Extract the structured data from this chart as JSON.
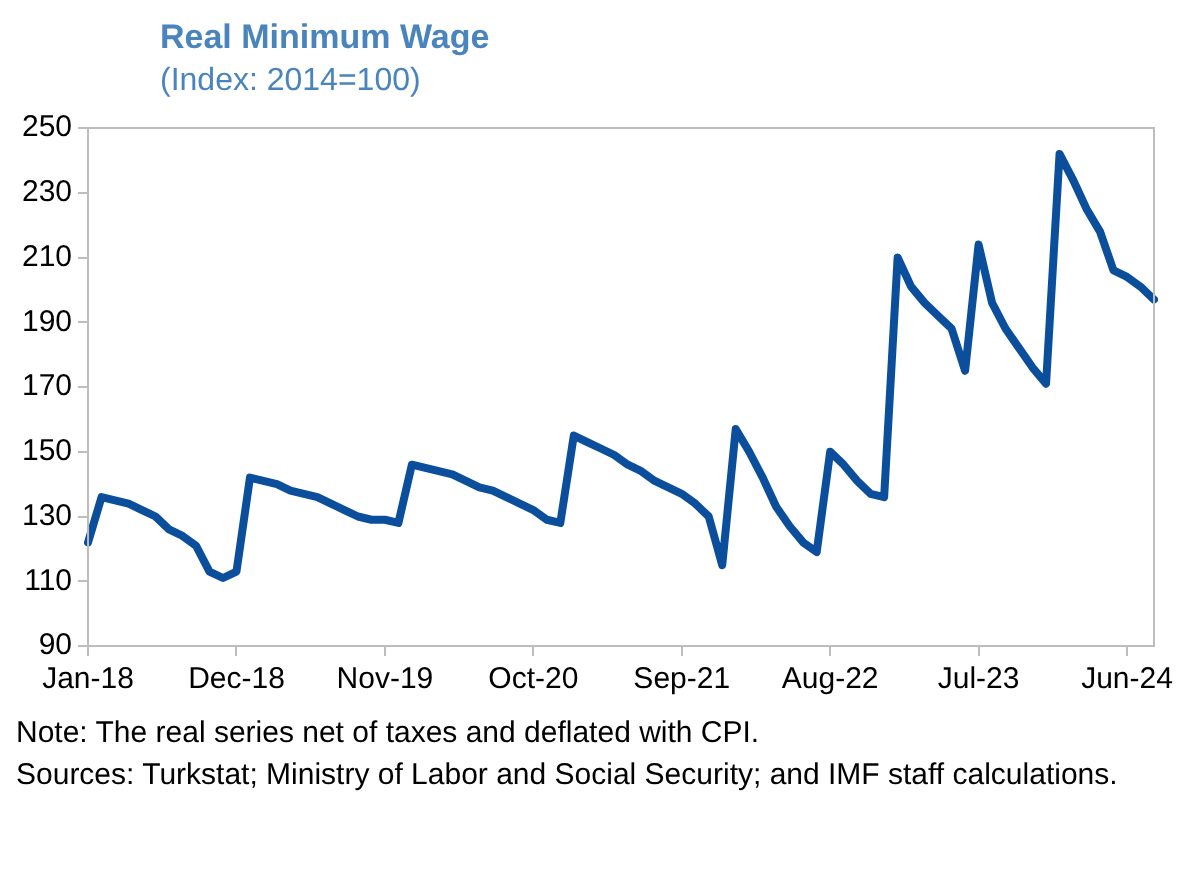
{
  "chart_data": {
    "type": "line",
    "title": "Real Minimum Wage",
    "subtitle": "(Index: 2014=100)",
    "categories": [
      "Jan-18",
      null,
      null,
      null,
      null,
      null,
      null,
      null,
      null,
      null,
      null,
      "Dec-18",
      null,
      null,
      null,
      null,
      null,
      null,
      null,
      null,
      null,
      null,
      "Nov-19",
      null,
      null,
      null,
      null,
      null,
      null,
      null,
      null,
      null,
      null,
      "Oct-20",
      null,
      null,
      null,
      null,
      null,
      null,
      null,
      null,
      null,
      null,
      "Sep-21",
      null,
      null,
      null,
      null,
      null,
      null,
      null,
      null,
      null,
      null,
      "Aug-22",
      null,
      null,
      null,
      null,
      null,
      null,
      null,
      null,
      null,
      null,
      "Jul-23",
      null,
      null,
      null,
      null,
      null,
      null,
      null,
      null,
      null,
      null,
      "Jun-24",
      null,
      null
    ],
    "series": [
      {
        "color": "#0b4f9c",
        "values": [
          122,
          136,
          135,
          134,
          132,
          130,
          126,
          124,
          121,
          113,
          111,
          113,
          142,
          141,
          140,
          138,
          137,
          136,
          134,
          132,
          130,
          129,
          129,
          128,
          146,
          145,
          144,
          143,
          141,
          139,
          138,
          136,
          134,
          132,
          129,
          128,
          155,
          153,
          151,
          149,
          146,
          144,
          141,
          139,
          137,
          134,
          130,
          115,
          157,
          150,
          142,
          133,
          127,
          122,
          119,
          150,
          146,
          141,
          137,
          136,
          210,
          201,
          196,
          192,
          188,
          175,
          214,
          196,
          188,
          182,
          176,
          171,
          242,
          234,
          225,
          218,
          206,
          204,
          201,
          197
        ]
      }
    ],
    "ylim": [
      90,
      250
    ],
    "yticks": [
      90,
      110,
      130,
      150,
      170,
      190,
      210,
      230,
      250
    ],
    "marker": "none",
    "line_style": "solid",
    "annotations": [
      "Note: The real series net of taxes and deflated with CPI.",
      "Sources: Turkstat; Ministry of Labor and Social Security; and IMF staff calculations."
    ]
  }
}
